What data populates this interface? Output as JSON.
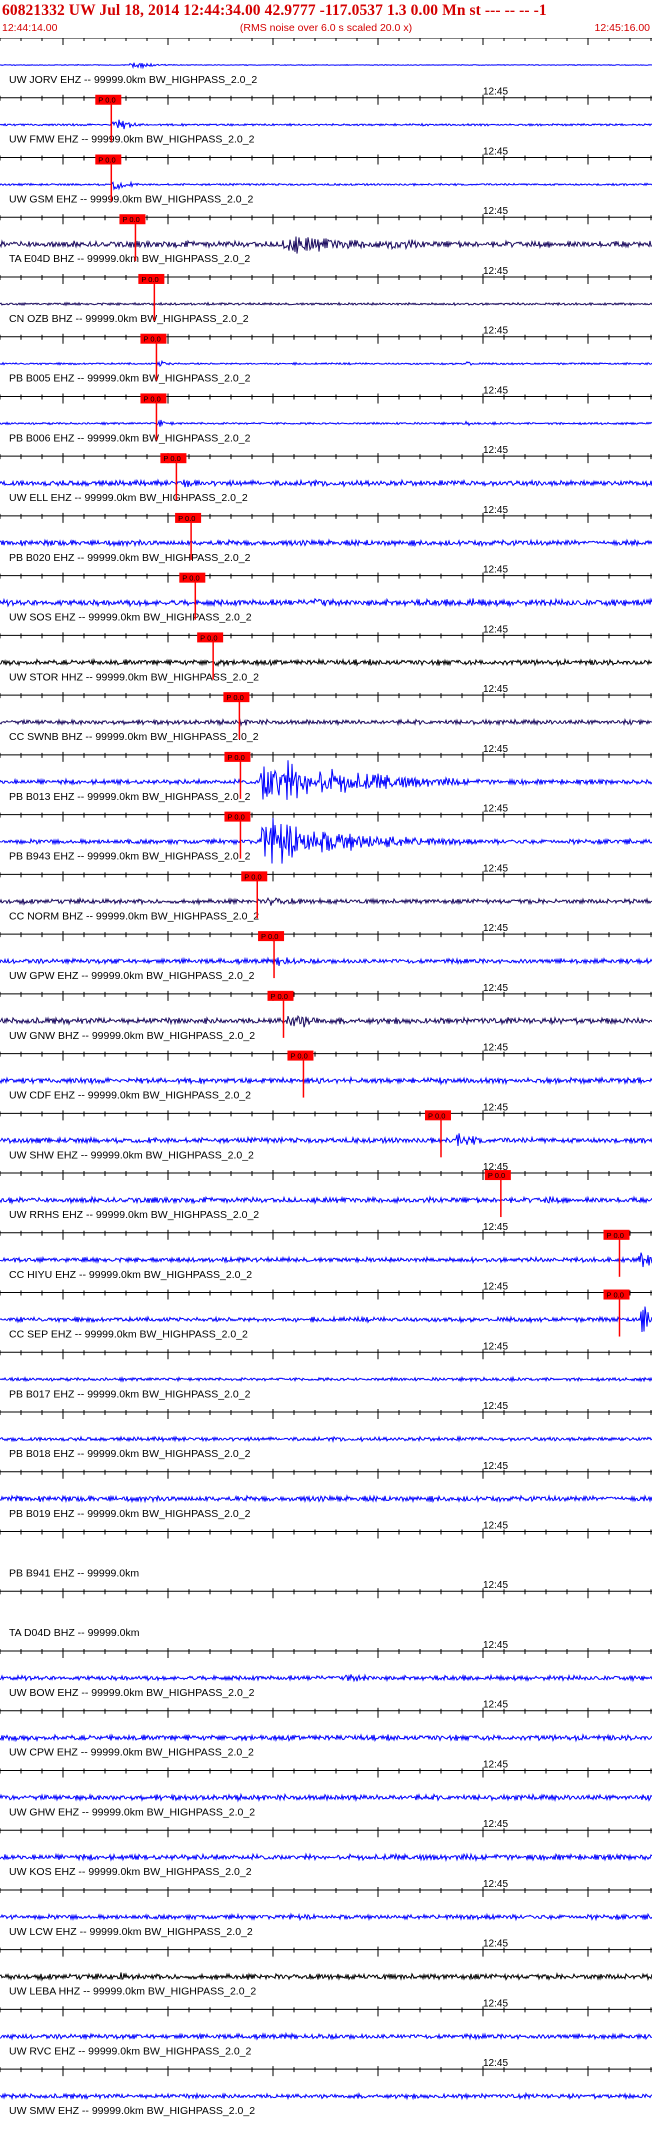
{
  "header": {
    "title": "60821332 UW Jul 18, 2014 12:44:34.00   42.9777 -117.0537  1.3 0.00 Mn st --- -- --  -1",
    "start_time": "12:44:14.00",
    "note": "(RMS noise over 6.0 s scaled 20.0 x)",
    "end_time": "12:45:16.00"
  },
  "colors": {
    "trace_blue": "#0000ff",
    "trace_navy": "#1a0a5e",
    "trace_black": "#000000",
    "pick_red": "#ff0000",
    "header_red": "#d40000",
    "axis": "#000000"
  },
  "chart_data": {
    "type": "seismogram",
    "x_unit": "seconds after 12:44:14.00",
    "xlim": [
      0,
      62
    ],
    "tick_interval_s": 2,
    "minute_label": "12:45",
    "minute_label_at_s": 46,
    "traces": [
      {
        "label": "UW JORV EHZ -- 99999.0km BW_HIGHPASS_2.0_2",
        "color": "blue",
        "pick": null,
        "bursts": [
          [
            12.5,
            2,
            5
          ]
        ],
        "noise": 0.5
      },
      {
        "label": "UW FMW EHZ -- 99999.0km BW_HIGHPASS_2.0_2",
        "color": "blue",
        "pick": {
          "label": "P 0.0",
          "t": 10.6
        },
        "bursts": [
          [
            10.8,
            1.5,
            10
          ]
        ],
        "noise": 1.3
      },
      {
        "label": "UW GSM EHZ -- 99999.0km BW_HIGHPASS_2.0_2",
        "color": "blue",
        "pick": {
          "label": "P 0.0",
          "t": 10.6
        },
        "bursts": [
          [
            10.8,
            1.2,
            10
          ]
        ],
        "noise": 1.3
      },
      {
        "label": "TA E04D BHZ -- 99999.0km BW_HIGHPASS_2.0_2",
        "color": "navy",
        "pick": {
          "label": "P 0.0",
          "t": 12.9
        },
        "bursts": [
          [
            27,
            9,
            13
          ],
          [
            37,
            6,
            8
          ]
        ],
        "noise": 4
      },
      {
        "label": "CN OZB BHZ -- 99999.0km BW_HIGHPASS_2.0_2",
        "color": "navy",
        "pick": {
          "label": "P 0.0",
          "t": 14.7
        },
        "bursts": [],
        "noise": 1.5
      },
      {
        "label": "PB B005 EHZ -- 99999.0km BW_HIGHPASS_2.0_2",
        "color": "blue",
        "pick": {
          "label": "P 0.0",
          "t": 14.9
        },
        "bursts": [
          [
            15,
            1.5,
            5
          ],
          [
            4.5,
            1,
            4
          ],
          [
            44.5,
            0.6,
            5
          ]
        ],
        "noise": 1.2
      },
      {
        "label": "PB B006 EHZ -- 99999.0km BW_HIGHPASS_2.0_2",
        "color": "blue",
        "pick": {
          "label": "P 0.0",
          "t": 14.9
        },
        "bursts": [
          [
            15,
            1.5,
            5
          ],
          [
            3,
            1,
            3
          ],
          [
            44.5,
            0.6,
            4
          ]
        ],
        "noise": 1.3
      },
      {
        "label": "UW ELL EHZ -- 99999.0km BW_HIGHPASS_2.0_2",
        "color": "blue",
        "pick": {
          "label": "P 0.0",
          "t": 16.8
        },
        "bursts": [
          [
            17.5,
            4,
            6
          ]
        ],
        "noise": 3.5
      },
      {
        "label": "PB B020 EHZ -- 99999.0km BW_HIGHPASS_2.0_2",
        "color": "blue",
        "pick": {
          "label": "P 0.0",
          "t": 18.2
        },
        "bursts": [
          [
            48,
            10,
            4
          ]
        ],
        "noise": 3.5
      },
      {
        "label": "UW SOS EHZ -- 99999.0km BW_HIGHPASS_2.0_2",
        "color": "blue",
        "pick": {
          "label": "P 0.0",
          "t": 18.6
        },
        "bursts": [
          [
            30,
            3,
            8
          ],
          [
            44,
            8,
            6
          ],
          [
            54,
            3,
            5
          ]
        ],
        "noise": 4
      },
      {
        "label": "UW STOR HHZ -- 99999.0km BW_HIGHPASS_2.0_2",
        "color": "black",
        "pick": {
          "label": "P 0.0",
          "t": 20.3
        },
        "bursts": [
          [
            20.6,
            2,
            6
          ]
        ],
        "noise": 3.5
      },
      {
        "label": "CC SWNB BHZ -- 99999.0km BW_HIGHPASS_2.0_2",
        "color": "navy",
        "pick": {
          "label": "P 0.0",
          "t": 22.8
        },
        "bursts": [
          [
            23,
            2,
            5
          ],
          [
            46,
            1.5,
            4
          ]
        ],
        "noise": 3
      },
      {
        "label": "PB B013 EHZ -- 99999.0km BW_HIGHPASS_2.0_2",
        "color": "blue",
        "pick": {
          "label": "P 0.0",
          "t": 22.9
        },
        "bursts": [
          [
            25,
            9,
            34
          ]
        ],
        "noise": 3
      },
      {
        "label": "PB B943 EHZ -- 99999.0km BW_HIGHPASS_2.0_2",
        "color": "blue",
        "pick": {
          "label": "P 0.0",
          "t": 22.9
        },
        "bursts": [
          [
            25,
            9,
            30
          ]
        ],
        "noise": 3
      },
      {
        "label": "CC NORM BHZ -- 99999.0km BW_HIGHPASS_2.0_2",
        "color": "navy",
        "pick": {
          "label": "P 0.0",
          "t": 24.5
        },
        "bursts": [
          [
            25.5,
            4,
            7
          ]
        ],
        "noise": 3
      },
      {
        "label": "UW GPW EHZ -- 99999.0km BW_HIGHPASS_2.0_2",
        "color": "blue",
        "pick": {
          "label": "P 0.0",
          "t": 26.1
        },
        "bursts": [
          [
            26.5,
            2,
            8
          ]
        ],
        "noise": 3
      },
      {
        "label": "UW GNW BHZ -- 99999.0km BW_HIGHPASS_2.0_2",
        "color": "navy",
        "pick": {
          "label": "P 0.0",
          "t": 27
        },
        "bursts": [
          [
            14.5,
            1.5,
            9
          ],
          [
            27.5,
            3,
            14
          ],
          [
            46,
            1,
            6
          ]
        ],
        "noise": 4
      },
      {
        "label": "UW CDF EHZ -- 99999.0km BW_HIGHPASS_2.0_2",
        "color": "blue",
        "pick": {
          "label": "P 0.0",
          "t": 28.9
        },
        "bursts": [
          [
            30.5,
            1,
            8
          ],
          [
            60.5,
            1.5,
            6
          ]
        ],
        "noise": 3.5
      },
      {
        "label": "UW SHW EHZ -- 99999.0km BW_HIGHPASS_2.0_2",
        "color": "blue",
        "pick": {
          "label": "P 0.0",
          "t": 42
        },
        "bursts": [
          [
            43.5,
            3,
            10
          ]
        ],
        "noise": 3.5
      },
      {
        "label": "UW RRHS EHZ -- 99999.0km BW_HIGHPASS_2.0_2",
        "color": "blue",
        "pick": {
          "label": "P 0.0",
          "t": 47.7
        },
        "bursts": [
          [
            8.5,
            1.5,
            7
          ],
          [
            52,
            1,
            8
          ]
        ],
        "noise": 3.5
      },
      {
        "label": "CC HIYU EHZ -- 99999.0km BW_HIGHPASS_2.0_2",
        "color": "blue",
        "pick": {
          "label": "P 0.0",
          "t": 59
        },
        "bursts": [
          [
            61,
            1.5,
            12
          ]
        ],
        "noise": 3
      },
      {
        "label": "CC SEP EHZ -- 99999.0km BW_HIGHPASS_2.0_2",
        "color": "blue",
        "pick": {
          "label": "P 0.0",
          "t": 59
        },
        "bursts": [
          [
            61,
            1.5,
            20
          ]
        ],
        "noise": 3
      },
      {
        "label": "PB B017 EHZ -- 99999.0km BW_HIGHPASS_2.0_2",
        "color": "blue",
        "pick": null,
        "bursts": [],
        "noise": 2
      },
      {
        "label": "PB B018 EHZ -- 99999.0km BW_HIGHPASS_2.0_2",
        "color": "blue",
        "pick": null,
        "bursts": [],
        "noise": 2.5
      },
      {
        "label": "PB B019 EHZ -- 99999.0km BW_HIGHPASS_2.0_2",
        "color": "blue",
        "pick": null,
        "bursts": [],
        "noise": 3.5
      },
      {
        "label": "PB B941 EHZ -- 99999.0km",
        "color": "none",
        "pick": null,
        "bursts": [],
        "noise": 0
      },
      {
        "label": "TA D04D BHZ -- 99999.0km",
        "color": "none",
        "pick": null,
        "bursts": [],
        "noise": 0
      },
      {
        "label": "UW BOW EHZ -- 99999.0km BW_HIGHPASS_2.0_2",
        "color": "blue",
        "pick": null,
        "bursts": [
          [
            33,
            4,
            6
          ]
        ],
        "noise": 3
      },
      {
        "label": "UW CPW EHZ -- 99999.0km BW_HIGHPASS_2.0_2",
        "color": "blue",
        "pick": null,
        "bursts": [],
        "noise": 3.5
      },
      {
        "label": "UW GHW EHZ -- 99999.0km BW_HIGHPASS_2.0_2",
        "color": "blue",
        "pick": null,
        "bursts": [
          [
            1,
            0.5,
            5
          ]
        ],
        "noise": 3.5
      },
      {
        "label": "UW KOS EHZ -- 99999.0km BW_HIGHPASS_2.0_2",
        "color": "blue",
        "pick": null,
        "bursts": [],
        "noise": 3.5
      },
      {
        "label": "UW LCW EHZ -- 99999.0km BW_HIGHPASS_2.0_2",
        "color": "blue",
        "pick": null,
        "bursts": [],
        "noise": 3
      },
      {
        "label": "UW LEBA HHZ -- 99999.0km BW_HIGHPASS_2.0_2",
        "color": "black",
        "pick": null,
        "bursts": [
          [
            11.5,
            0.8,
            7
          ]
        ],
        "noise": 3.5
      },
      {
        "label": "UW RVC EHZ -- 99999.0km BW_HIGHPASS_2.0_2",
        "color": "blue",
        "pick": null,
        "bursts": [],
        "noise": 3
      },
      {
        "label": "UW SMW EHZ -- 99999.0km BW_HIGHPASS_2.0_2",
        "color": "blue",
        "pick": null,
        "bursts": [],
        "noise": 3
      }
    ]
  }
}
